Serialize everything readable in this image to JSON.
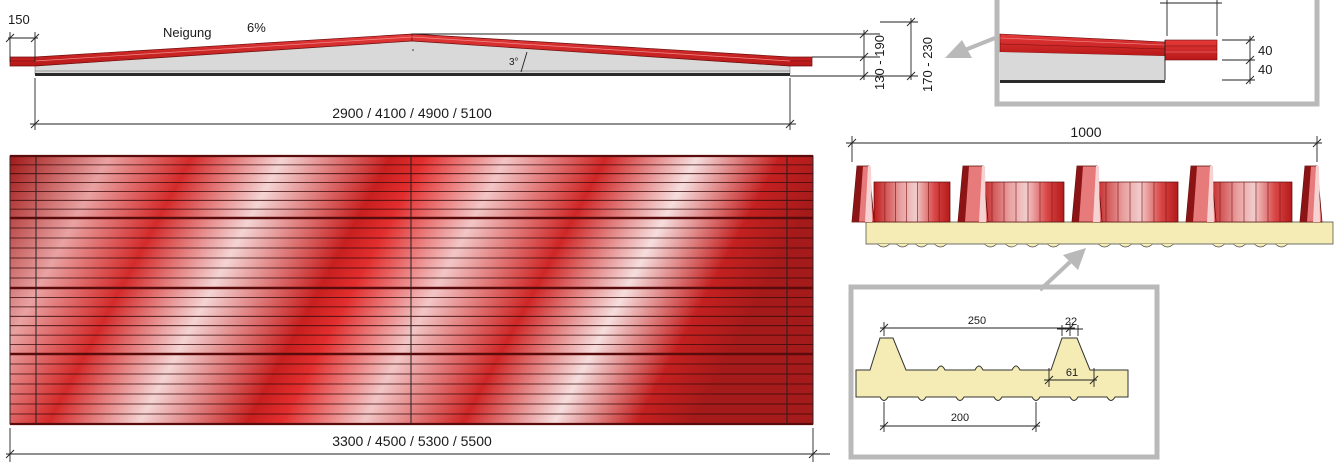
{
  "side_view": {
    "overhang": "150",
    "slope_word": "Neigung",
    "slope_value": "6%",
    "angle": "3°",
    "height_a": "130 - 190",
    "height_b": "170 - 230",
    "span": "2900 / 4100 / 4900 / 5100"
  },
  "detail_top": {
    "layer_1": "40",
    "layer_2": "40"
  },
  "plan_view": {
    "length": "3300 / 4500 / 5300 / 5500"
  },
  "profile_view": {
    "width": "1000"
  },
  "detail_profile": {
    "pitch": "250",
    "rib_top": "22",
    "rib_base": "61",
    "valley": "200"
  },
  "colors": {
    "panel_red": "#d42a2a",
    "panel_dark": "#8c1414",
    "insulation_grey": "#d9d9d9",
    "foam": "#f4ecb4",
    "frame_grey": "#b9b9b9"
  }
}
